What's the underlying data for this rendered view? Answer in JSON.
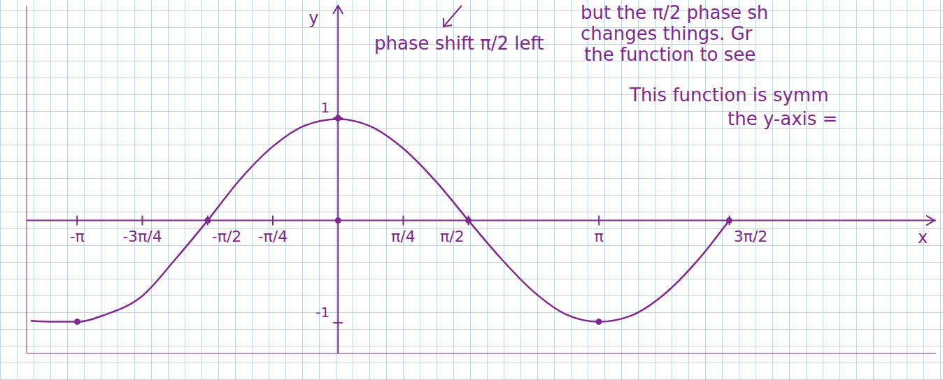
{
  "chart_data": {
    "type": "line",
    "x_label": "x",
    "y_label": "y",
    "annotations": [
      "phase shift π/2 left",
      "but the π/2 phase sh",
      "changes things. Gr",
      "the function to see",
      "This function is symm",
      "the y-axis ="
    ],
    "xlim": [
      -3.75,
      7.2
    ],
    "ylim": [
      -1.3,
      2.1
    ],
    "xticks": [
      {
        "value": -3.1416,
        "label": "-π"
      },
      {
        "value": -2.3562,
        "label": "-3π/4"
      },
      {
        "value": -1.5708,
        "label": "-π/2"
      },
      {
        "value": -0.7854,
        "label": "-π/4"
      },
      {
        "value": 0.7854,
        "label": "π/4"
      },
      {
        "value": 1.5708,
        "label": "π/2"
      },
      {
        "value": 3.1416,
        "label": "π"
      },
      {
        "value": 4.7124,
        "label": "3π/2"
      }
    ],
    "yticks": [
      -1,
      1
    ],
    "series": [
      {
        "type": "line",
        "color": "#7d2a8c",
        "line_style": "solid",
        "x": [
          -3.7,
          -3.4,
          -3.14,
          -2.8,
          -2.36,
          -1.96,
          -1.57,
          -1.18,
          -0.79,
          -0.39,
          0,
          0.39,
          0.79,
          1.18,
          1.57,
          1.96,
          2.36,
          2.75,
          3.14,
          3.53,
          3.93,
          4.32,
          4.71
        ],
        "values": [
          -0.98,
          -0.99,
          -0.99,
          -0.92,
          -0.74,
          -0.38,
          0,
          0.4,
          0.72,
          0.93,
          0.99,
          0.92,
          0.7,
          0.38,
          0,
          -0.37,
          -0.7,
          -0.92,
          -0.99,
          -0.93,
          -0.72,
          -0.4,
          0
        ]
      },
      {
        "type": "scatter",
        "color": "#7d2a8c",
        "marker": "circle",
        "x": [
          -3.14,
          -1.57,
          0,
          0,
          1.57,
          3.14,
          4.71
        ],
        "values": [
          -0.99,
          0,
          1,
          0,
          0,
          -0.99,
          0
        ]
      }
    ]
  }
}
